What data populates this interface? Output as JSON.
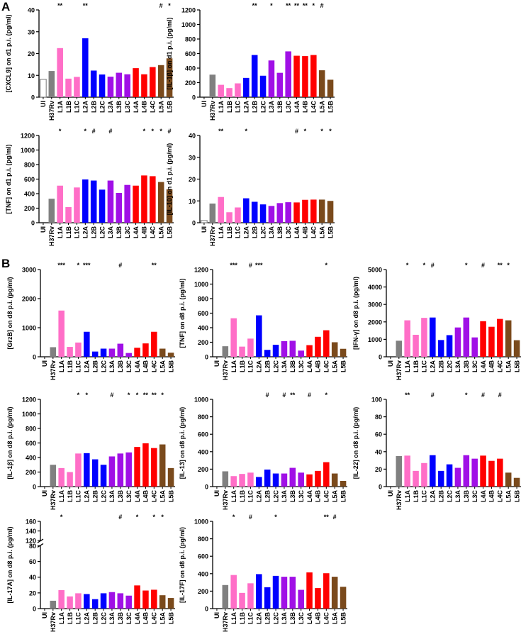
{
  "figure": {
    "panel_a_label": "A",
    "panel_b_label": "B"
  },
  "colors": {
    "UI": "#ffffff",
    "H37Rv": "#808080",
    "L1": "#ff6ec7",
    "L2": "#0000ff",
    "L3": "#a010e6",
    "L4": "#ff0000",
    "L5": "#7a4a1c",
    "ui_outline": "#8c8c8c"
  },
  "chart_data": [
    {
      "id": "cxcl9-d1",
      "type": "bar",
      "ylabel": "[CXCL9] on d1 p.i. (pg/ml)",
      "ylim": [
        0,
        40
      ],
      "yticks": [
        0,
        10,
        20,
        30,
        40
      ],
      "categories": [
        "UI",
        "H37Rv",
        "L1A",
        "L1B",
        "L1C",
        "L2A",
        "L2B",
        "L2C",
        "L3A",
        "L3B",
        "L3C",
        "L4A",
        "L4B",
        "L4C",
        "L5A",
        "L5B"
      ],
      "values": [
        8.2,
        12,
        22.5,
        8.5,
        9.3,
        27,
        12.2,
        10.4,
        9.4,
        11.2,
        10.5,
        13.3,
        10.5,
        13.8,
        14.7,
        17.8
      ],
      "significance": [
        "",
        "",
        "**",
        "",
        "",
        "**",
        "",
        "",
        "",
        "",
        "",
        "",
        "",
        "",
        "#",
        "*"
      ]
    },
    {
      "id": "il1b-d1",
      "type": "bar",
      "ylabel": "[IL-1β] on d1 p.i. (pg/ml)",
      "ylim": [
        0,
        1200
      ],
      "yticks": [
        0,
        200,
        400,
        600,
        800,
        1000,
        1200
      ],
      "categories": [
        "UI",
        "H37Rv",
        "L1A",
        "L1B",
        "L1C",
        "L2A",
        "L2B",
        "L2C",
        "L3A",
        "L3B",
        "L3C",
        "L4A",
        "L4B",
        "L4C",
        "L5A",
        "L5B"
      ],
      "values": [
        0,
        310,
        170,
        125,
        190,
        265,
        580,
        295,
        505,
        335,
        630,
        570,
        565,
        580,
        370,
        240
      ],
      "significance": [
        "",
        "",
        "",
        "",
        "",
        "",
        "**",
        "",
        "*",
        "",
        "**",
        "**",
        "**",
        "*",
        "#",
        ""
      ]
    },
    {
      "id": "tnf-d1",
      "type": "bar",
      "ylabel": "[TNF] on d1 p.i. (pg/ml)",
      "ylim": [
        0,
        1200
      ],
      "yticks": [
        0,
        200,
        400,
        600,
        800,
        1000,
        1200
      ],
      "categories": [
        "UI",
        "H37Rv",
        "L1A",
        "L1B",
        "L1C",
        "L2A",
        "L2B",
        "L2C",
        "L3A",
        "L3B",
        "L3C",
        "L4A",
        "L4B",
        "L4C",
        "L5A",
        "L5B"
      ],
      "values": [
        0,
        330,
        510,
        215,
        485,
        595,
        580,
        455,
        580,
        410,
        520,
        510,
        650,
        640,
        560,
        460
      ],
      "significance": [
        "",
        "",
        "*",
        "",
        "",
        "*",
        "#",
        "",
        "#",
        "",
        "",
        "",
        "*",
        "*",
        "*",
        "#"
      ]
    },
    {
      "id": "il10-d1",
      "type": "bar",
      "ylabel": "[IL-10] on d1 p.i. (pg/ml)",
      "ylim": [
        0,
        40
      ],
      "yticks": [
        0,
        10,
        20,
        30,
        40
      ],
      "categories": [
        "UI",
        "H37Rv",
        "L1A",
        "L1B",
        "L1C",
        "L2A",
        "L2B",
        "L2C",
        "L3A",
        "L3B",
        "L3C",
        "L4A",
        "L4B",
        "L4C",
        "L5A",
        "L5B"
      ],
      "values": [
        1,
        8.8,
        11.8,
        4.8,
        7,
        11.2,
        9.6,
        8.4,
        7.7,
        9,
        9.4,
        9.3,
        10.5,
        10.6,
        10.6,
        10
      ],
      "significance": [
        "",
        "",
        "**",
        "",
        "",
        "*",
        "",
        "",
        "",
        "",
        "",
        "#",
        "*",
        "",
        "*",
        "*"
      ]
    },
    {
      "id": "grzb-d8",
      "type": "bar",
      "ylabel": "[GrzB] on d8 p.i. (pg/ml)",
      "ylim": [
        0,
        3000
      ],
      "yticks": [
        0,
        1000,
        2000,
        3000
      ],
      "categories": [
        "UI",
        "H37Rv",
        "L1A",
        "L1B",
        "L1C",
        "L2A",
        "L2B",
        "L2C",
        "L3A",
        "L3B",
        "L3C",
        "L4A",
        "L4B",
        "L4C",
        "L5A",
        "L5B"
      ],
      "values": [
        0,
        330,
        1590,
        340,
        490,
        860,
        180,
        280,
        280,
        450,
        130,
        310,
        460,
        860,
        280,
        140
      ],
      "significance": [
        "",
        "",
        "***",
        "",
        "*",
        "***",
        "",
        "",
        "",
        "#",
        "",
        "",
        "",
        "**",
        "",
        ""
      ]
    },
    {
      "id": "tnf-d8",
      "type": "bar",
      "ylabel": "[TNF] on d8 p.i. (pg/ml)",
      "ylim": [
        0,
        1200
      ],
      "yticks": [
        0,
        200,
        400,
        600,
        800,
        1000,
        1200
      ],
      "categories": [
        "UI",
        "H37Rv",
        "L1A",
        "L1B",
        "L1C",
        "L2A",
        "L2B",
        "L2C",
        "L3A",
        "L3B",
        "L3C",
        "L4A",
        "L4B",
        "L4C",
        "L5A",
        "L5B"
      ],
      "values": [
        0,
        145,
        530,
        140,
        250,
        570,
        95,
        165,
        215,
        220,
        85,
        160,
        275,
        365,
        200,
        110
      ],
      "significance": [
        "",
        "",
        "***",
        "",
        "#",
        "***",
        "",
        "",
        "",
        "",
        "",
        "",
        "",
        "*",
        "",
        ""
      ]
    },
    {
      "id": "ifng-d8",
      "type": "bar",
      "ylabel": "[IFN-γ] on d8 p.i. (pg/ml)",
      "ylim": [
        0,
        5000
      ],
      "yticks": [
        0,
        1000,
        2000,
        3000,
        4000,
        5000
      ],
      "categories": [
        "UI",
        "H37Rv",
        "L1A",
        "L1B",
        "L1C",
        "L2A",
        "L2B",
        "L2C",
        "L3A",
        "L3B",
        "L3C",
        "L4A",
        "L4B",
        "L4C",
        "L5A",
        "L5B"
      ],
      "values": [
        0,
        920,
        2090,
        1260,
        2230,
        2250,
        960,
        1240,
        1680,
        2250,
        1110,
        2040,
        1720,
        2170,
        2090,
        950
      ],
      "significance": [
        "",
        "",
        "*",
        "",
        "*",
        "#",
        "",
        "",
        "",
        "*",
        "",
        "#",
        "",
        "**",
        "*",
        ""
      ]
    },
    {
      "id": "il1b-d8",
      "type": "bar",
      "ylabel": "[IL-1β]  on d8 p.i. (pg/ml)",
      "ylim": [
        0,
        1200
      ],
      "yticks": [
        0,
        200,
        400,
        600,
        800,
        1000,
        1200
      ],
      "categories": [
        "UI",
        "H37Rv",
        "L1A",
        "L1B",
        "L1C",
        "L2A",
        "L2B",
        "L2C",
        "L3A",
        "L3B",
        "L3C",
        "L4A",
        "L4B",
        "L4C",
        "L5A",
        "L5B"
      ],
      "values": [
        0,
        300,
        255,
        200,
        455,
        460,
        375,
        300,
        415,
        455,
        470,
        545,
        595,
        530,
        580,
        255
      ],
      "significance": [
        "",
        "",
        "",
        "",
        "*",
        "*",
        "",
        "",
        "#",
        "",
        "*",
        "*",
        "**",
        "**",
        "*",
        ""
      ]
    },
    {
      "id": "il13-d8",
      "type": "bar",
      "ylabel": "[IL-13] on d8 p.i. (pg/ml)",
      "ylim": [
        0,
        1000
      ],
      "yticks": [
        0,
        200,
        400,
        600,
        800,
        1000
      ],
      "categories": [
        "UI",
        "H37Rv",
        "L1A",
        "L1B",
        "L1C",
        "L2A",
        "L2B",
        "L2C",
        "L3A",
        "L3B",
        "L3C",
        "L4A",
        "L4B",
        "L4C",
        "L5A",
        "L5B"
      ],
      "values": [
        0,
        175,
        120,
        145,
        160,
        110,
        195,
        150,
        150,
        215,
        160,
        140,
        180,
        280,
        150,
        65
      ],
      "significance": [
        "",
        "",
        "",
        "",
        "",
        "",
        "#",
        "",
        "#",
        "**",
        "",
        "#",
        "",
        "*",
        "",
        ""
      ]
    },
    {
      "id": "il22-d8",
      "type": "bar",
      "ylabel": "[IL-22] on d8 p.i. (pg/ml)",
      "ylim": [
        0,
        100
      ],
      "yticks": [
        0,
        20,
        40,
        60,
        80,
        100
      ],
      "categories": [
        "UI",
        "H37Rv",
        "L1A",
        "L1B",
        "L1C",
        "L2A",
        "L2B",
        "L2C",
        "L3A",
        "L3B",
        "L3C",
        "L4A",
        "L4B",
        "L4C",
        "L5A",
        "L5B"
      ],
      "values": [
        0,
        35,
        35.5,
        18,
        27,
        36,
        18,
        25.5,
        21.5,
        36,
        32,
        35.5,
        29.5,
        32,
        16,
        10
      ],
      "significance": [
        "",
        "",
        "**",
        "",
        "",
        "#",
        "",
        "",
        "",
        "*",
        "",
        "#",
        "",
        "#",
        "",
        ""
      ]
    },
    {
      "id": "il17a-d8",
      "type": "bar",
      "ylabel": "[IL-17A] on d8 p.i. (pg/ml)",
      "ylim": [
        0,
        160
      ],
      "axis_break": [
        80,
        120
      ],
      "yticks": [
        0,
        20,
        40,
        60,
        80,
        120,
        140,
        160
      ],
      "categories": [
        "UI",
        "H37Rv",
        "L1A",
        "L1B",
        "L1C",
        "L2A",
        "L2B",
        "L2C",
        "L3A",
        "L3B",
        "L3C",
        "L4A",
        "L4B",
        "L4C",
        "L5A",
        "L5B"
      ],
      "values": [
        0,
        10,
        23.5,
        15.5,
        19.5,
        18.5,
        12,
        19.5,
        21,
        19.5,
        16.5,
        29.5,
        23,
        24,
        17,
        13.5
      ],
      "significance": [
        "",
        "",
        "*",
        "",
        "",
        "",
        "",
        "",
        "",
        "#",
        "",
        "*",
        "",
        "*",
        "*",
        ""
      ]
    },
    {
      "id": "il17f-d8",
      "type": "bar",
      "ylabel": "[IL-17F] on d8 p.i. (pg/ml)",
      "ylim": [
        0,
        1000
      ],
      "yticks": [
        0,
        200,
        400,
        600,
        800,
        1000
      ],
      "categories": [
        "UI",
        "H37Rv",
        "L1A",
        "L1B",
        "L1C",
        "L2A",
        "L2B",
        "L2C",
        "L3A",
        "L3B",
        "L3C",
        "L4A",
        "L4B",
        "L4C",
        "L5A",
        "L5B"
      ],
      "values": [
        0,
        270,
        385,
        180,
        290,
        395,
        245,
        375,
        365,
        365,
        215,
        415,
        235,
        405,
        365,
        250
      ],
      "significance": [
        "",
        "",
        "*",
        "",
        "#",
        "",
        "",
        "*",
        "",
        "",
        "",
        "",
        "",
        "**",
        "#",
        ""
      ]
    }
  ]
}
